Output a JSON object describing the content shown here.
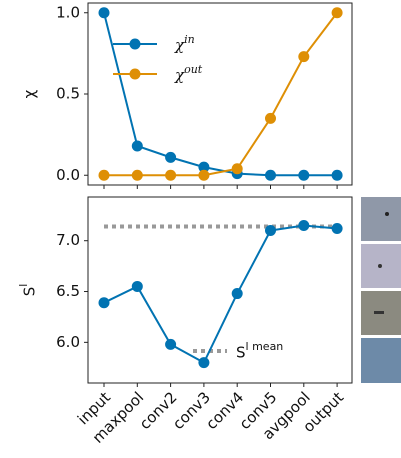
{
  "chart_data": [
    {
      "type": "line",
      "ylabel": "χ",
      "categories": [
        "input",
        "maxpool",
        "conv2",
        "conv3",
        "conv4",
        "conv5",
        "avgpool",
        "output"
      ],
      "series": [
        {
          "name": "χ^in",
          "color": "#0173b2",
          "values": [
            1.0,
            0.18,
            0.11,
            0.05,
            0.01,
            0.0,
            0.0,
            0.0
          ]
        },
        {
          "name": "χ^out",
          "color": "#de8f05",
          "values": [
            0.0,
            0.0,
            0.0,
            0.0,
            0.04,
            0.35,
            0.73,
            1.0
          ]
        }
      ],
      "ylim": [
        -0.06,
        1.06
      ],
      "yticks": [
        {
          "value": 0,
          "label": "0.0"
        },
        0.5,
        {
          "value": 1,
          "label": "1.0"
        }
      ],
      "legend": "upper-left"
    },
    {
      "type": "line",
      "ylabel": "S^l",
      "categories": [
        "input",
        "maxpool",
        "conv2",
        "conv3",
        "conv4",
        "conv5",
        "avgpool",
        "output"
      ],
      "series": [
        {
          "name": null,
          "color": "#0173b2",
          "values": [
            6.39,
            6.55,
            5.98,
            5.8,
            6.48,
            7.1,
            7.15,
            7.12
          ]
        }
      ],
      "hline": {
        "name": "S^l mean",
        "value": 7.14,
        "color": "#999999"
      },
      "ylim": [
        5.6,
        7.43
      ],
      "yticks": [
        {
          "value": 6,
          "label": "6.0"
        },
        6.5,
        {
          "value": 7,
          "label": "7.0"
        }
      ],
      "legend": "lower-right"
    }
  ]
}
